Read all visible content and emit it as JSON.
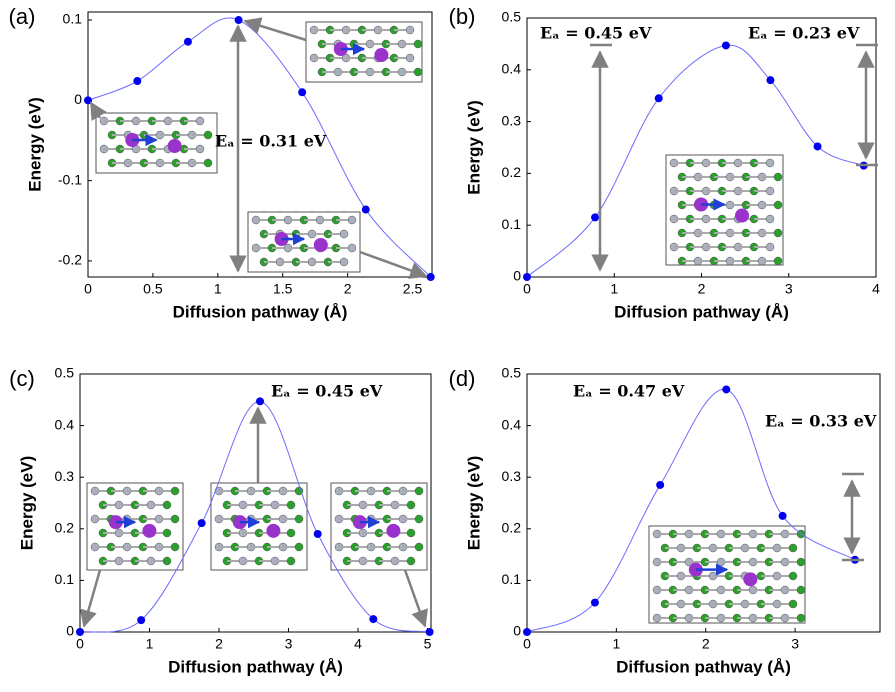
{
  "chart_data": [
    {
      "type": "line",
      "panel": "(a)",
      "x_label": "Diffusion pathway (Å)",
      "y_label": "Energy (eV)",
      "annotations": [
        "Eₐ = 0.31 eV"
      ],
      "x": [
        0,
        0.38,
        0.77,
        1.16,
        1.65,
        2.14,
        2.64
      ],
      "series": [
        {
          "color": "#0000ee",
          "values": [
            0,
            0.024,
            0.073,
            0.1,
            0.01,
            -0.136,
            -0.22
          ]
        }
      ],
      "xlim": [
        0,
        2.65
      ],
      "xticks": [
        0,
        0.5,
        1,
        1.5,
        2,
        2.5
      ],
      "ylim": [
        -0.22,
        0.11
      ],
      "yticks": [
        0.1,
        0,
        -0.1,
        -0.2
      ]
    },
    {
      "type": "line",
      "panel": "(b)",
      "x_label": "Diffusion pathway (Å)",
      "y_label": "Energy (eV)",
      "annotations": [
        "Eₐ = 0.45 eV",
        "Eₐ = 0.23 eV"
      ],
      "x": [
        0,
        0.78,
        1.51,
        2.28,
        2.79,
        3.33,
        3.86
      ],
      "series": [
        {
          "color": "#0000ee",
          "values": [
            0,
            0.115,
            0.345,
            0.447,
            0.38,
            0.252,
            0.215
          ]
        }
      ],
      "xlim": [
        0,
        4
      ],
      "xticks": [
        0,
        1,
        2,
        3,
        4
      ],
      "ylim": [
        0,
        0.5
      ],
      "yticks": [
        0,
        0.1,
        0.2,
        0.3,
        0.4,
        0.5
      ]
    },
    {
      "type": "line",
      "panel": "(c)",
      "x_label": "Diffusion pathway (Å)",
      "y_label": "Energy (eV)",
      "annotations": [
        "Eₐ = 0.45 eV"
      ],
      "x": [
        0,
        0.88,
        1.75,
        2.59,
        3.42,
        4.22,
        5.03
      ],
      "series": [
        {
          "color": "#0000ee",
          "values": [
            0,
            0.023,
            0.211,
            0.447,
            0.19,
            0.025,
            0
          ]
        }
      ],
      "xlim": [
        0,
        5.05
      ],
      "xticks": [
        0,
        1,
        2,
        3,
        4,
        5
      ],
      "ylim": [
        0,
        0.5
      ],
      "yticks": [
        0,
        0.1,
        0.2,
        0.3,
        0.4,
        0.5
      ]
    },
    {
      "type": "line",
      "panel": "(d)",
      "x_label": "Diffusion pathway (Å)",
      "y_label": "Energy (eV)",
      "annotations": [
        "Eₐ = 0.47 eV",
        "Eₐ = 0.33 eV"
      ],
      "x": [
        0,
        0.76,
        1.49,
        2.23,
        2.86,
        3.67
      ],
      "series": [
        {
          "color": "#0000ee",
          "values": [
            0,
            0.057,
            0.285,
            0.47,
            0.225,
            0.14
          ]
        }
      ],
      "xlim": [
        0,
        3.95
      ],
      "xticks": [
        0,
        1,
        2,
        3
      ],
      "ylim": [
        0,
        0.5
      ],
      "yticks": [
        0,
        0.1,
        0.2,
        0.3,
        0.4,
        0.5
      ]
    }
  ]
}
